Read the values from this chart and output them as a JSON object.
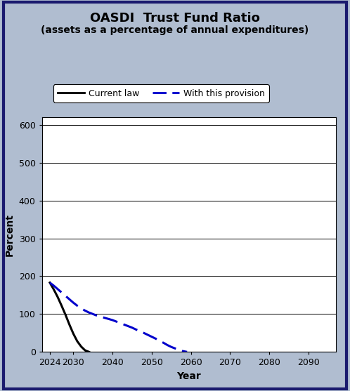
{
  "title_line1": "OASDI  Trust Fund Ratio",
  "title_line2": "(assets as a percentage of annual expenditures)",
  "xlabel": "Year",
  "ylabel": "Percent",
  "ylim": [
    0,
    620
  ],
  "yticks": [
    0,
    100,
    200,
    300,
    400,
    500,
    600
  ],
  "xlim": [
    2022,
    2097
  ],
  "xticks": [
    2024,
    2030,
    2040,
    2050,
    2060,
    2070,
    2080,
    2090
  ],
  "background_color": "#b0bdd0",
  "plot_bg_color": "#ffffff",
  "border_color": "#1a1a6e",
  "current_law": {
    "x": [
      2024,
      2025,
      2026,
      2027,
      2028,
      2029,
      2030,
      2031,
      2032,
      2033,
      2034
    ],
    "y": [
      183,
      165,
      145,
      122,
      98,
      72,
      48,
      28,
      14,
      4,
      0
    ],
    "color": "#000000",
    "linewidth": 2.2,
    "label": "Current law"
  },
  "provision": {
    "x": [
      2024,
      2025,
      2026,
      2027,
      2028,
      2029,
      2030,
      2031,
      2032,
      2033,
      2034,
      2035,
      2036,
      2037,
      2038,
      2039,
      2040,
      2041,
      2042,
      2043,
      2044,
      2045,
      2046,
      2047,
      2048,
      2049,
      2050,
      2051,
      2052,
      2053,
      2054,
      2055,
      2056,
      2057,
      2058,
      2059
    ],
    "y": [
      183,
      175,
      166,
      157,
      148,
      139,
      130,
      122,
      115,
      109,
      104,
      100,
      96,
      93,
      90,
      87,
      84,
      80,
      76,
      72,
      68,
      64,
      59,
      55,
      50,
      45,
      40,
      35,
      29,
      24,
      18,
      13,
      9,
      5,
      2,
      0
    ],
    "color": "#0000cc",
    "linewidth": 2.2,
    "label": "With this provision"
  },
  "legend_fontsize": 9,
  "title_fontsize": 13,
  "subtitle_fontsize": 10,
  "axis_label_fontsize": 10,
  "tick_fontsize": 9,
  "grid_color": "#000000",
  "grid_linewidth": 0.7
}
